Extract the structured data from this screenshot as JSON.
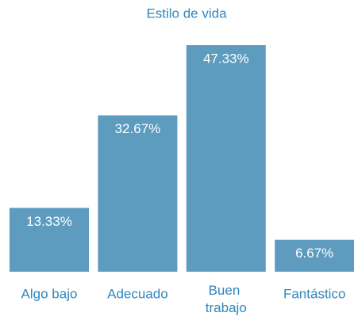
{
  "chart_data": {
    "type": "bar",
    "title": "Estilo de vida",
    "categories": [
      "Algo bajo",
      "Adecuado",
      "Buen trabajo",
      "Fantástico"
    ],
    "values": [
      13.33,
      32.67,
      47.33,
      6.67
    ],
    "value_labels": [
      "13.33%",
      "32.67%",
      "47.33%",
      "6.67%"
    ],
    "color": "#5d9cbf"
  }
}
